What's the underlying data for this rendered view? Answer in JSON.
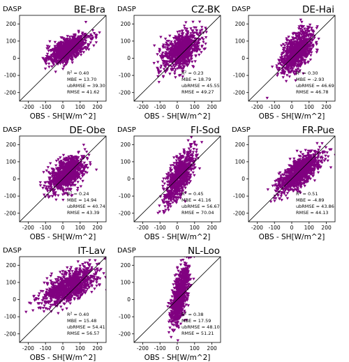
{
  "figure": {
    "colors": {
      "points": "#800080",
      "identity_line": "#000000",
      "axes": "#000000"
    }
  },
  "chart_data": [
    {
      "type": "scatter",
      "title": "BE-Bra",
      "ylabel": "DASP",
      "xlabel": "OBS - SH[W/m^2]",
      "xlim": [
        -250,
        250
      ],
      "ylim": [
        -250,
        250
      ],
      "xticks": [
        -200,
        -100,
        0,
        100,
        200
      ],
      "yticks": [
        -200,
        -100,
        0,
        100,
        200
      ],
      "identity_line": true,
      "grid": false,
      "cloud": {
        "center": [
          30,
          50
        ],
        "spread": [
          55,
          40
        ],
        "corr": 0.63,
        "n": 900
      },
      "stats": {
        "r2_label": "R^2 = 0.40",
        "mbe_label": "MBE = 13.70",
        "ubrmse_label": "ubRMSE = 39.30",
        "rmse_label": "RMSE = 41.62"
      }
    },
    {
      "type": "scatter",
      "title": "CZ-BK",
      "ylabel": "DASP",
      "xlabel": "OBS - SH[W/m^2]",
      "xlim": [
        -250,
        250
      ],
      "ylim": [
        -250,
        250
      ],
      "xticks": [
        -200,
        -100,
        0,
        100,
        200
      ],
      "yticks": [
        -200,
        -100,
        0,
        100,
        200
      ],
      "identity_line": true,
      "grid": false,
      "cloud": {
        "center": [
          25,
          45
        ],
        "spread": [
          55,
          55
        ],
        "corr": 0.48,
        "n": 900
      },
      "stats": {
        "r2_label": "R^2 = 0.23",
        "mbe_label": "MBE = 18.79",
        "ubrmse_label": "ubRMSE = 45.55",
        "rmse_label": "RMSE = 49.27"
      }
    },
    {
      "type": "scatter",
      "title": "DE-Hai",
      "ylabel": "DASP",
      "xlabel": "OBS - SH[W/m^2]",
      "xlim": [
        -250,
        250
      ],
      "ylim": [
        -250,
        250
      ],
      "xticks": [
        -200,
        -100,
        0,
        100,
        200
      ],
      "yticks": [
        -200,
        -100,
        0,
        100,
        200
      ],
      "identity_line": true,
      "grid": false,
      "cloud": {
        "center": [
          30,
          35
        ],
        "spread": [
          45,
          60
        ],
        "corr": 0.55,
        "n": 900
      },
      "stats": {
        "r2_label": "R^2 = 0.30",
        "mbe_label": "MBE = -2.93",
        "ubrmse_label": "ubRMSE = 46.69",
        "rmse_label": "RMSE = 46.78"
      }
    },
    {
      "type": "scatter",
      "title": "DE-Obe",
      "ylabel": "DASP",
      "xlabel": "OBS - SH[W/m^2]",
      "xlim": [
        -250,
        250
      ],
      "ylim": [
        -250,
        250
      ],
      "xticks": [
        -200,
        -100,
        0,
        100,
        200
      ],
      "yticks": [
        -200,
        -100,
        0,
        100,
        200
      ],
      "identity_line": true,
      "grid": false,
      "cloud": {
        "center": [
          25,
          30
        ],
        "spread": [
          50,
          50
        ],
        "corr": 0.49,
        "n": 900
      },
      "stats": {
        "r2_label": "R^2 = 0.24",
        "mbe_label": "MBE = 14.94",
        "ubrmse_label": "ubRMSE = 40.74",
        "rmse_label": "RMSE = 43.39"
      }
    },
    {
      "type": "scatter",
      "title": "FI-Sod",
      "ylabel": "DASP",
      "xlabel": "OBS - SH[W/m^2]",
      "xlim": [
        -250,
        250
      ],
      "ylim": [
        -250,
        250
      ],
      "xticks": [
        -200,
        -100,
        0,
        100,
        200
      ],
      "yticks": [
        -200,
        -100,
        0,
        100,
        200
      ],
      "identity_line": true,
      "grid": false,
      "cloud": {
        "center": [
          15,
          10
        ],
        "spread": [
          40,
          75
        ],
        "corr": 0.67,
        "n": 800
      },
      "stats": {
        "r2_label": "R^2 = 0.45",
        "mbe_label": "MBE = 41.16",
        "ubrmse_label": "ubRMSE = 56.67",
        "rmse_label": "RMSE = 70.04"
      }
    },
    {
      "type": "scatter",
      "title": "FR-Pue",
      "ylabel": "DASP",
      "xlabel": "OBS - SH[W/m^2]",
      "xlim": [
        -250,
        250
      ],
      "ylim": [
        -250,
        250
      ],
      "xticks": [
        -200,
        -100,
        0,
        100,
        200
      ],
      "yticks": [
        -200,
        -100,
        0,
        100,
        200
      ],
      "identity_line": true,
      "grid": false,
      "cloud": {
        "center": [
          50,
          40
        ],
        "spread": [
          60,
          55
        ],
        "corr": 0.71,
        "n": 1000
      },
      "stats": {
        "r2_label": "R^2 = 0.51",
        "mbe_label": "MBE = -4.89",
        "ubrmse_label": "ubRMSE = 43.86",
        "rmse_label": "RMSE = 44.13"
      }
    },
    {
      "type": "scatter",
      "title": "IT-Lav",
      "ylabel": "DASP",
      "xlabel": "OBS - SH[W/m^2]",
      "xlim": [
        -250,
        250
      ],
      "ylim": [
        -250,
        250
      ],
      "xticks": [
        -200,
        -100,
        0,
        100,
        200
      ],
      "yticks": [
        -200,
        -100,
        0,
        100,
        200
      ],
      "identity_line": true,
      "grid": false,
      "cloud": {
        "center": [
          40,
          75
        ],
        "spread": [
          80,
          55
        ],
        "corr": 0.63,
        "n": 1000
      },
      "stats": {
        "r2_label": "R^2 = 0.40",
        "mbe_label": "MBE = 15.48",
        "ubrmse_label": "ubRMSE = 54.41",
        "rmse_label": "RMSE = 56.57"
      }
    },
    {
      "type": "scatter",
      "title": "NL-Loo",
      "ylabel": "DASP",
      "xlabel": "OBS - SH[W/m^2]",
      "xlim": [
        -250,
        250
      ],
      "ylim": [
        -250,
        250
      ],
      "xticks": [
        -200,
        -100,
        0,
        100,
        200
      ],
      "yticks": [
        -200,
        -100,
        0,
        100,
        200
      ],
      "identity_line": true,
      "grid": false,
      "cloud": {
        "center": [
          15,
          20
        ],
        "spread": [
          25,
          80
        ],
        "corr": 0.62,
        "n": 900
      },
      "stats": {
        "r2_label": "R^2 = 0.38",
        "mbe_label": "MBE = 17.59",
        "ubrmse_label": "ubRMSE = 48.10",
        "rmse_label": "RMSE = 51.21"
      }
    }
  ]
}
